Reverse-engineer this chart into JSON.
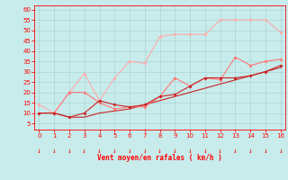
{
  "xlabel": "Vent moyen/en rafales ( km/h )",
  "background_color": "#c8ecec",
  "grid_color": "#aad4d4",
  "x_values": [
    0,
    1,
    2,
    3,
    4,
    5,
    6,
    7,
    8,
    9,
    10,
    11,
    12,
    13,
    14,
    15,
    16
  ],
  "line1_y": [
    14,
    10,
    20,
    29,
    16,
    27,
    35,
    34,
    47,
    48,
    48,
    48,
    55,
    55,
    55,
    55,
    49
  ],
  "line2_y": [
    10,
    10,
    20,
    20,
    15,
    12,
    13,
    13,
    18,
    27,
    23,
    27,
    26,
    37,
    33,
    35,
    36
  ],
  "line3_y": [
    10,
    10,
    8,
    10,
    16,
    14,
    13,
    14,
    18,
    19,
    23,
    27,
    27,
    27,
    28,
    30,
    33
  ],
  "line4_y": [
    10,
    10,
    8,
    8,
    10,
    11,
    12,
    14,
    16,
    18,
    20,
    22,
    24,
    26,
    28,
    30,
    32
  ],
  "line1_color": "#ffaaaa",
  "line2_color": "#ff7777",
  "line3_color": "#cc2222",
  "line4_color": "#cc2222",
  "ylim": [
    2,
    62
  ],
  "xlim": [
    -0.3,
    16.3
  ],
  "yticks": [
    5,
    10,
    15,
    20,
    25,
    30,
    35,
    40,
    45,
    50,
    55,
    60
  ],
  "xticks": [
    0,
    1,
    2,
    3,
    4,
    5,
    6,
    7,
    8,
    9,
    10,
    11,
    12,
    13,
    14,
    15,
    16
  ]
}
